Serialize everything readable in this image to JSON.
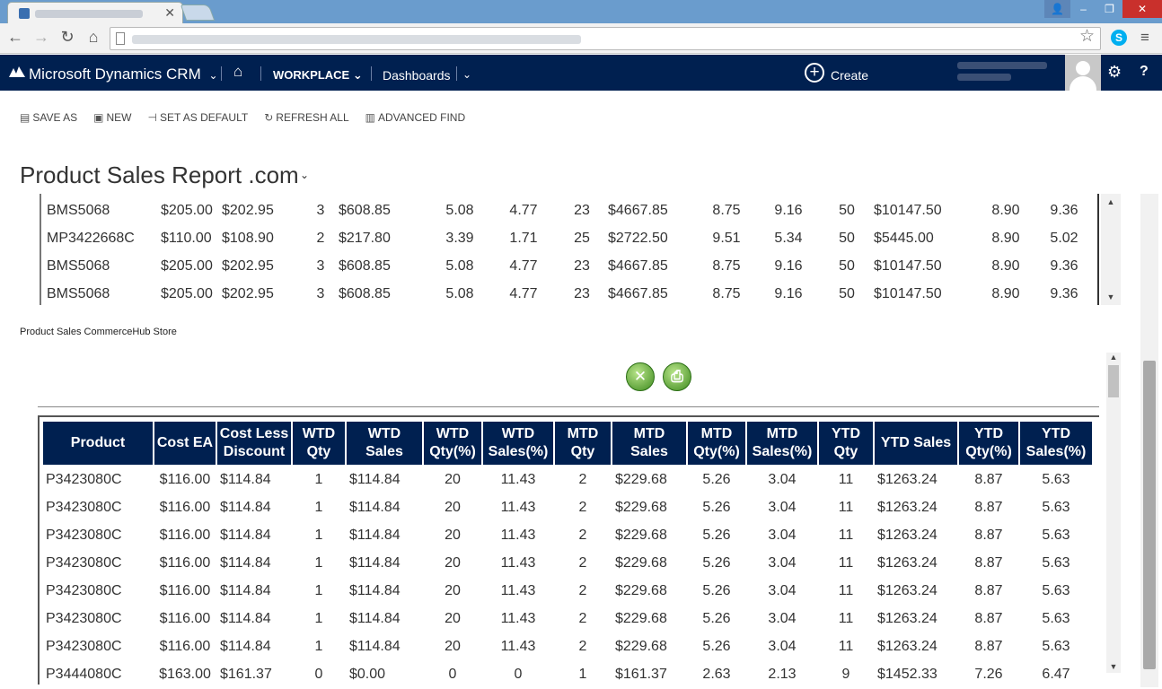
{
  "browser": {
    "tab_close": "✕",
    "star_icon": "☆",
    "skype_icon": "S",
    "menu_icon": "≡"
  },
  "crm": {
    "brand": "Microsoft Dynamics CRM",
    "brand_chevron": "⌄",
    "workplace": "WORKPLACE ⌄",
    "dashboards": "Dashboards",
    "dashboards_chevron": "⌄",
    "create": "Create",
    "create_icon": "+",
    "gear_icon": "⚙",
    "help_icon": "?",
    "home_icon": "⌂",
    "accent_color": "#002050"
  },
  "commands": [
    {
      "icon": "▤",
      "label": "SAVE AS"
    },
    {
      "icon": "▣",
      "label": "NEW"
    },
    {
      "icon": "⊣",
      "label": "SET AS DEFAULT"
    },
    {
      "icon": "↻",
      "label": "REFRESH ALL"
    },
    {
      "icon": "▥",
      "label": "ADVANCED FIND"
    }
  ],
  "dashboard": {
    "title": "Product Sales Report .com",
    "title_chevron": "⌄"
  },
  "upper_report": {
    "rows": [
      [
        "BMS5068",
        "$205.00",
        "$202.95",
        "3",
        "$608.85",
        "5.08",
        "4.77",
        "23",
        "$4667.85",
        "8.75",
        "9.16",
        "50",
        "$10147.50",
        "8.90",
        "9.36"
      ],
      [
        "MP3422668C",
        "$110.00",
        "$108.90",
        "2",
        "$217.80",
        "3.39",
        "1.71",
        "25",
        "$2722.50",
        "9.51",
        "5.34",
        "50",
        "$5445.00",
        "8.90",
        "5.02"
      ],
      [
        "BMS5068",
        "$205.00",
        "$202.95",
        "3",
        "$608.85",
        "5.08",
        "4.77",
        "23",
        "$4667.85",
        "8.75",
        "9.16",
        "50",
        "$10147.50",
        "8.90",
        "9.36"
      ],
      [
        "BMS5068",
        "$205.00",
        "$202.95",
        "3",
        "$608.85",
        "5.08",
        "4.77",
        "23",
        "$4667.85",
        "8.75",
        "9.16",
        "50",
        "$10147.50",
        "8.90",
        "9.36"
      ]
    ]
  },
  "lower_report": {
    "section_label": "Product Sales CommerceHub Store",
    "export_excel_icon": "✕",
    "print_icon": "⎙",
    "headers": [
      "Product",
      "Cost EA",
      "Cost Less Discount",
      "WTD Qty",
      "WTD Sales",
      "WTD Qty(%)",
      "WTD Sales(%)",
      "MTD Qty",
      "MTD Sales",
      "MTD Qty(%)",
      "MTD Sales(%)",
      "YTD Qty",
      "YTD Sales",
      "YTD Qty(%)",
      "YTD Sales(%)"
    ],
    "rows": [
      [
        "P3423080C",
        "$116.00",
        "$114.84",
        "1",
        "$114.84",
        "20",
        "11.43",
        "2",
        "$229.68",
        "5.26",
        "3.04",
        "11",
        "$1263.24",
        "8.87",
        "5.63"
      ],
      [
        "P3423080C",
        "$116.00",
        "$114.84",
        "1",
        "$114.84",
        "20",
        "11.43",
        "2",
        "$229.68",
        "5.26",
        "3.04",
        "11",
        "$1263.24",
        "8.87",
        "5.63"
      ],
      [
        "P3423080C",
        "$116.00",
        "$114.84",
        "1",
        "$114.84",
        "20",
        "11.43",
        "2",
        "$229.68",
        "5.26",
        "3.04",
        "11",
        "$1263.24",
        "8.87",
        "5.63"
      ],
      [
        "P3423080C",
        "$116.00",
        "$114.84",
        "1",
        "$114.84",
        "20",
        "11.43",
        "2",
        "$229.68",
        "5.26",
        "3.04",
        "11",
        "$1263.24",
        "8.87",
        "5.63"
      ],
      [
        "P3423080C",
        "$116.00",
        "$114.84",
        "1",
        "$114.84",
        "20",
        "11.43",
        "2",
        "$229.68",
        "5.26",
        "3.04",
        "11",
        "$1263.24",
        "8.87",
        "5.63"
      ],
      [
        "P3423080C",
        "$116.00",
        "$114.84",
        "1",
        "$114.84",
        "20",
        "11.43",
        "2",
        "$229.68",
        "5.26",
        "3.04",
        "11",
        "$1263.24",
        "8.87",
        "5.63"
      ],
      [
        "P3423080C",
        "$116.00",
        "$114.84",
        "1",
        "$114.84",
        "20",
        "11.43",
        "2",
        "$229.68",
        "5.26",
        "3.04",
        "11",
        "$1263.24",
        "8.87",
        "5.63"
      ],
      [
        "P3444080C",
        "$163.00",
        "$161.37",
        "0",
        "$0.00",
        "0",
        "0",
        "1",
        "$161.37",
        "2.63",
        "2.13",
        "9",
        "$1452.33",
        "7.26",
        "6.47"
      ]
    ]
  }
}
